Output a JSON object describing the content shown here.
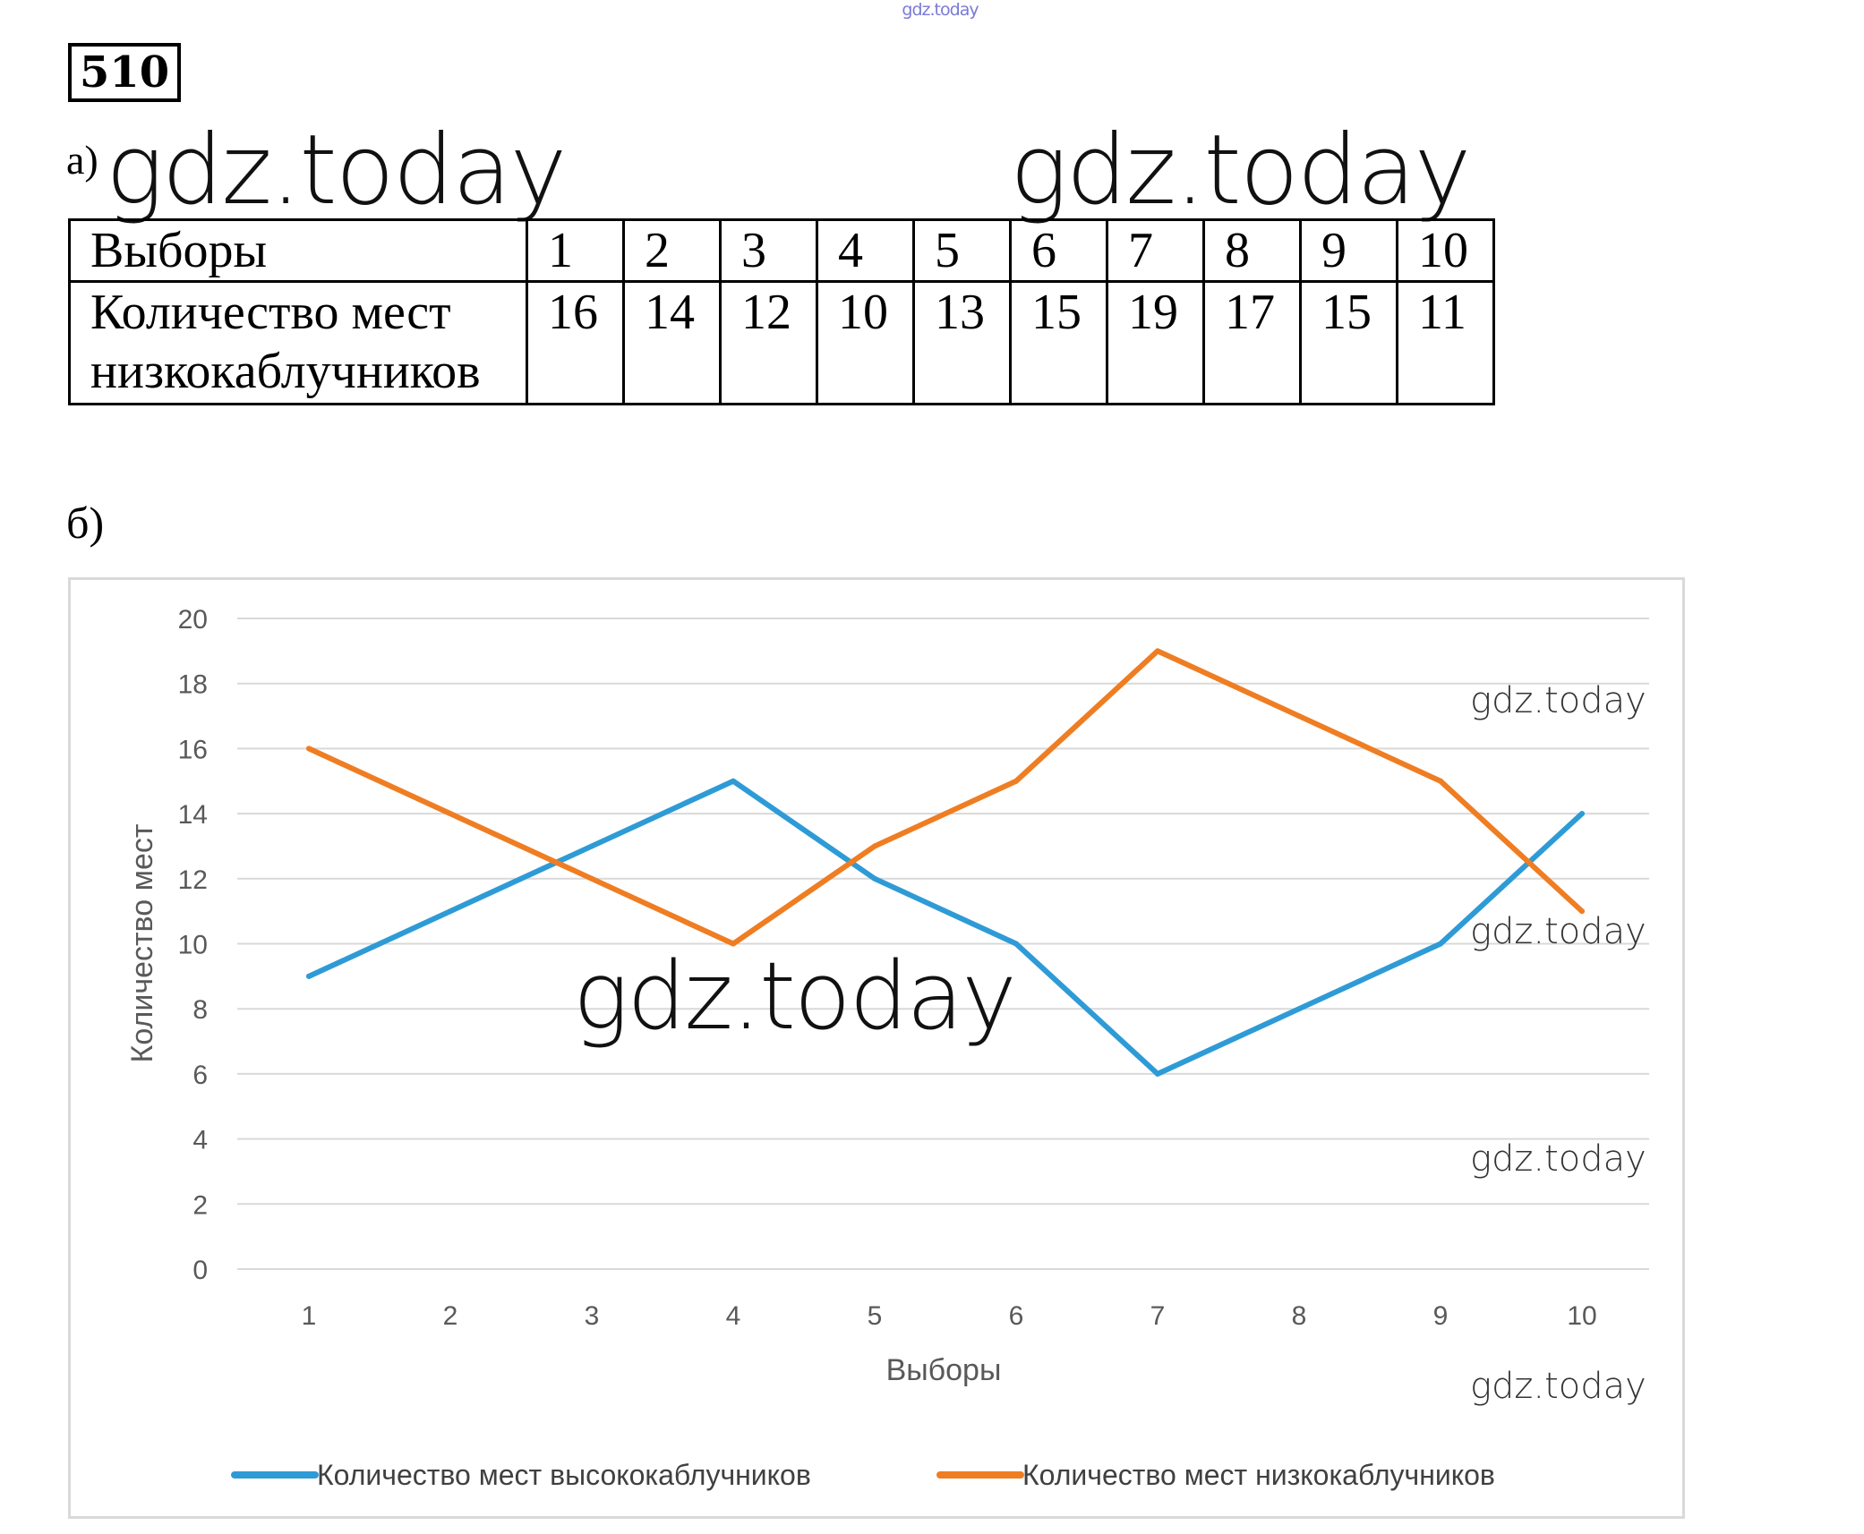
{
  "header": {
    "top_watermark": "gdz.today",
    "problem_number": "510"
  },
  "part_a": {
    "label": "а)",
    "table": {
      "row1_label": "Выборы",
      "row2_label_line1": "Количество мест",
      "row2_label_line2": "низкокаблучников",
      "choices": [
        "1",
        "2",
        "3",
        "4",
        "5",
        "6",
        "7",
        "8",
        "9",
        "10"
      ],
      "seats": [
        "16",
        "14",
        "12",
        "10",
        "13",
        "15",
        "19",
        "17",
        "15",
        "11"
      ]
    }
  },
  "part_b": {
    "label": "б)"
  },
  "watermarks": {
    "w1": "gdz.today",
    "w2": "gdz.today",
    "w3": "gdz.today",
    "w4": "gdz.today",
    "w5": "gdz.today",
    "w6": "gdz.today",
    "w7": "gdz.today"
  },
  "chart_data": {
    "type": "line",
    "xlabel": "Выборы",
    "ylabel": "Количество мест",
    "categories": [
      "1",
      "2",
      "3",
      "4",
      "5",
      "6",
      "7",
      "8",
      "9",
      "10"
    ],
    "ylim": [
      0,
      20
    ],
    "yticks": [
      0,
      2,
      4,
      6,
      8,
      10,
      12,
      14,
      16,
      18,
      20
    ],
    "grid": true,
    "legend_position": "bottom",
    "series": [
      {
        "name": "Количество мест высококаблучников",
        "color": "#2e9bd6",
        "values": [
          9,
          11,
          13,
          15,
          12,
          10,
          6,
          8,
          10,
          14
        ]
      },
      {
        "name": "Количество мест низкокаблучников",
        "color": "#ef7d22",
        "values": [
          16,
          14,
          12,
          10,
          13,
          15,
          19,
          17,
          15,
          11
        ]
      }
    ]
  }
}
